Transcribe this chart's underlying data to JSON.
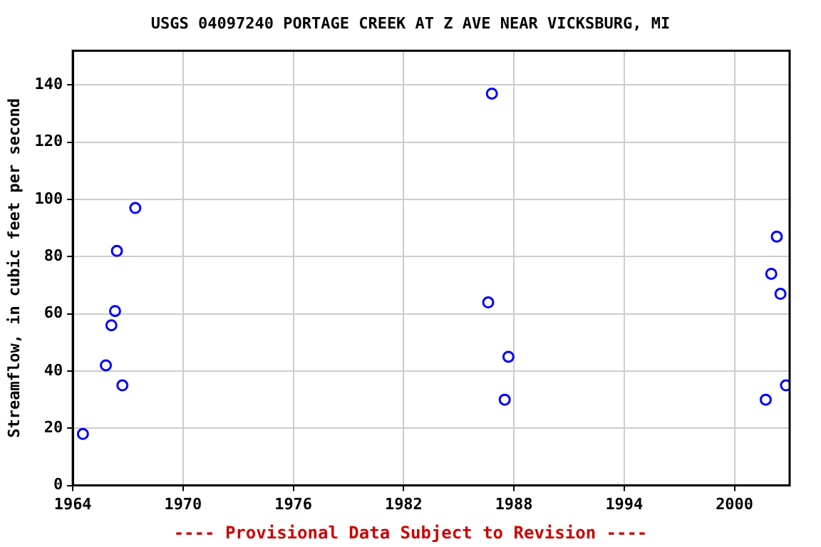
{
  "chart_data": {
    "type": "scatter",
    "title": "USGS 04097240 PORTAGE CREEK AT Z AVE NEAR VICKSBURG, MI",
    "ylabel": "Streamflow, in cubic feet per second",
    "x": [
      1964.55,
      1965.8,
      1966.1,
      1966.3,
      1966.4,
      1966.7,
      1967.4,
      1986.6,
      1986.8,
      1987.5,
      1987.7,
      2001.7,
      2002.0,
      2002.3,
      2002.5,
      2002.8
    ],
    "series": [
      {
        "color": "#0000ff",
        "values": [
          18,
          42,
          56,
          61,
          82,
          35,
          97,
          64,
          137,
          30,
          45,
          30,
          74,
          87,
          67,
          35
        ]
      }
    ],
    "xlim": [
      1964,
      2003
    ],
    "xticks": [
      1964,
      1970,
      1976,
      1982,
      1988,
      1994,
      2000
    ],
    "ylim": [
      0,
      152
    ],
    "yticks": [
      0,
      20,
      40,
      60,
      80,
      100,
      120,
      140
    ],
    "grid": true,
    "marker": "circle",
    "legend": false,
    "annotations": [
      "---- Provisional Data Subject to Revision ----"
    ]
  }
}
